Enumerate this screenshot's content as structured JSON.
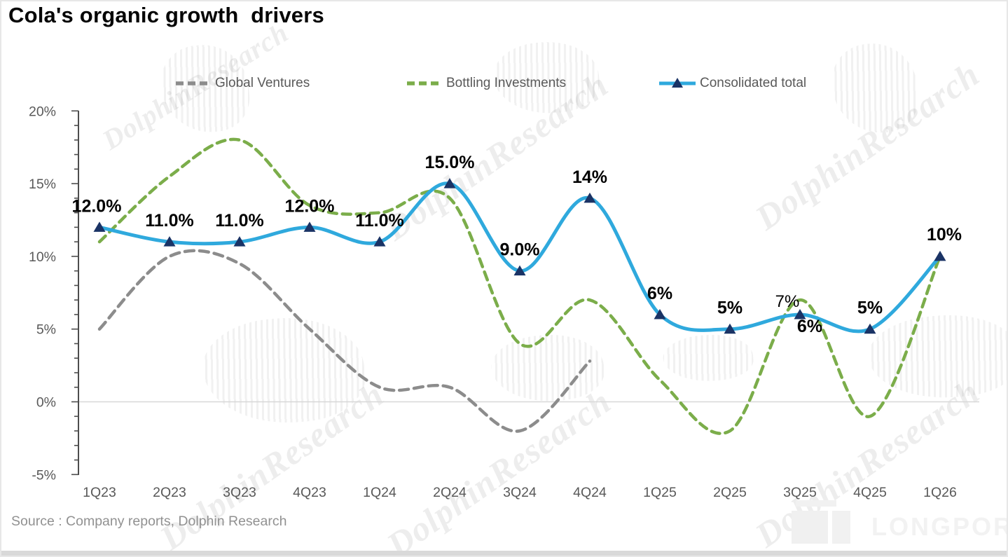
{
  "page": {
    "title": "Cola's organic growth  drivers",
    "source": "Source : Company reports, Dolphin Research"
  },
  "watermark": {
    "text": "DolphinResearch",
    "brand": "LONGPORT"
  },
  "colors": {
    "consolidated_line": "#2fa9dd",
    "consolidated_marker": "#1a3365",
    "bottling_line": "#7bad4a",
    "global_ventures_line": "#8c8c8c",
    "axis_text": "#595959",
    "axis_line": "#4d4d4d",
    "zero_gridline": "#d8d8d8",
    "data_label": "#000000"
  },
  "legend": {
    "items": [
      {
        "label": "Global Ventures",
        "color": "#8c8c8c",
        "style": "dashed"
      },
      {
        "label": "Bottling Investments",
        "color": "#7bad4a",
        "style": "dashed"
      },
      {
        "label": "Consolidated total",
        "color": "#2fa9dd",
        "style": "solid",
        "marker": "triangle",
        "marker_color": "#1a3365"
      }
    ]
  },
  "chart_data": {
    "type": "line",
    "title": "Cola's organic growth  drivers",
    "categories": [
      "1Q23",
      "2Q23",
      "3Q23",
      "4Q23",
      "1Q24",
      "2Q24",
      "3Q24",
      "4Q24",
      "1Q25",
      "2Q25",
      "3Q25",
      "4Q25",
      "1Q26"
    ],
    "series": [
      {
        "name": "Global Ventures",
        "style": "dashed",
        "color": "#8c8c8c",
        "values": [
          5,
          10,
          9.5,
          5,
          1,
          1,
          -2,
          2.8
        ]
      },
      {
        "name": "Bottling Investments",
        "style": "dashed",
        "color": "#7bad4a",
        "values": [
          11,
          15.5,
          18,
          13.5,
          13,
          14,
          4,
          7,
          1.5,
          -2,
          7,
          -1,
          10
        ]
      },
      {
        "name": "Consolidated total",
        "style": "solid",
        "color": "#2fa9dd",
        "marker": "triangle",
        "marker_color": "#1a3365",
        "values": [
          12,
          11,
          11,
          12,
          11,
          15,
          9,
          14,
          6,
          5,
          6,
          5,
          10
        ],
        "data_labels": [
          "12.0%",
          "11.0%",
          "11.0%",
          "12.0%",
          "11.0%",
          "15.0%",
          "9.0%",
          "14%",
          "6%",
          "5%",
          "6%",
          "5%",
          "10%"
        ]
      }
    ],
    "extra_labels": [
      {
        "text": "7%",
        "series": "Bottling Investments",
        "category": "3Q25",
        "value": 7
      }
    ],
    "y_ticks": [
      {
        "value": 20,
        "label": "20%"
      },
      {
        "value": 15,
        "label": "15%"
      },
      {
        "value": 10,
        "label": "10%"
      },
      {
        "value": 5,
        "label": "5%"
      },
      {
        "value": 0,
        "label": "0%"
      },
      {
        "value": -5,
        "label": "-5%"
      }
    ],
    "ylim": [
      -5,
      20
    ],
    "minor_tick_step": 1,
    "grid": "zero-line-only",
    "legend_position": "top"
  }
}
